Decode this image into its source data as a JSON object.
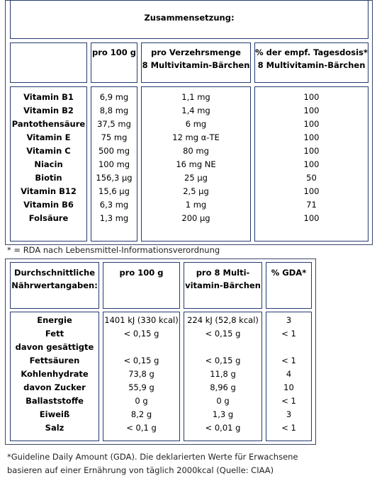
{
  "vitamin_table": {
    "title": "Zusammensetzung:",
    "columns": [
      "pro 100 g",
      "pro Verzehrsmenge\n8 Multivitamin-Bärchen",
      "% der empf. Tagesdosis*\n8 Multivitamin-Bärchen"
    ],
    "col1_label": "pro 100 g",
    "col2_line1": "pro Verzehrsmenge",
    "col2_line2": "8 Multivitamin-Bärchen",
    "col3_line1": "% der empf. Tagesdosis*",
    "col3_line2": "8 Multivitamin-Bärchen",
    "rows": [
      {
        "name": "Vitamin B1",
        "per100": "6,9 mg",
        "serving": "1,1 mg",
        "rda": "100"
      },
      {
        "name": "Vitamin B2",
        "per100": "8,8 mg",
        "serving": "1,4 mg",
        "rda": "100"
      },
      {
        "name": "Pantothensäure",
        "per100": "37,5 mg",
        "serving": "6 mg",
        "rda": "100"
      },
      {
        "name": "Vitamin E",
        "per100": "75 mg",
        "serving": "12 mg α-TE",
        "rda": "100"
      },
      {
        "name": "Vitamin C",
        "per100": "500 mg",
        "serving": "80 mg",
        "rda": "100"
      },
      {
        "name": "Niacin",
        "per100": "100 mg",
        "serving": "16 mg NE",
        "rda": "100"
      },
      {
        "name": "Biotin",
        "per100": "156,3 µg",
        "serving": "25 µg",
        "rda": "50"
      },
      {
        "name": "Vitamin B12",
        "per100": "15,6 µg",
        "serving": "2,5 µg",
        "rda": "100"
      },
      {
        "name": "Vitamin B6",
        "per100": "6,3 mg",
        "serving": "1 mg",
        "rda": "71"
      },
      {
        "name": "Folsäure",
        "per100": "1,3 mg",
        "serving": "200 µg",
        "rda": "100"
      }
    ],
    "footnote": "* = RDA nach Lebensmittel-Informationsverordnung"
  },
  "nutrition_table": {
    "col0_line1": "Durchschnittliche",
    "col0_line2": "Nährwertangaben:",
    "col1_label": "pro 100 g",
    "col2_line1": "pro 8 Multi-",
    "col2_line2": "vitamin-Bärchen",
    "col3_label": "% GDA*",
    "rows": [
      {
        "name": "Energie",
        "per100": "1401 kJ (330 kcal)",
        "serving": "224 kJ (52,8 kcal)",
        "gda": "3"
      },
      {
        "name": "Fett",
        "per100": "< 0,15 g",
        "serving": "< 0,15 g",
        "gda": "< 1"
      },
      {
        "name": "davon gesättigte",
        "per100": "",
        "serving": "",
        "gda": ""
      },
      {
        "name": "Fettsäuren",
        "per100": "< 0,15 g",
        "serving": "< 0,15 g",
        "gda": "< 1"
      },
      {
        "name": "Kohlenhydrate",
        "per100": "73,8 g",
        "serving": "11,8 g",
        "gda": "4"
      },
      {
        "name": "davon Zucker",
        "per100": "55,9 g",
        "serving": "8,96 g",
        "gda": "10"
      },
      {
        "name": "Ballaststoffe",
        "per100": "0 g",
        "serving": "0 g",
        "gda": "< 1"
      },
      {
        "name": "Eiweiß",
        "per100": "8,2 g",
        "serving": "1,3 g",
        "gda": "3"
      },
      {
        "name": "Salz",
        "per100": "< 0,1 g",
        "serving": "< 0,01 g",
        "gda": "< 1"
      }
    ],
    "footnote_line1": "*Guideline Daily Amount (GDA). Die deklarierten Werte für Erwachsene",
    "footnote_line2": "basieren auf einer Ernährung von täglich 2000kcal (Quelle: CIAA)"
  }
}
